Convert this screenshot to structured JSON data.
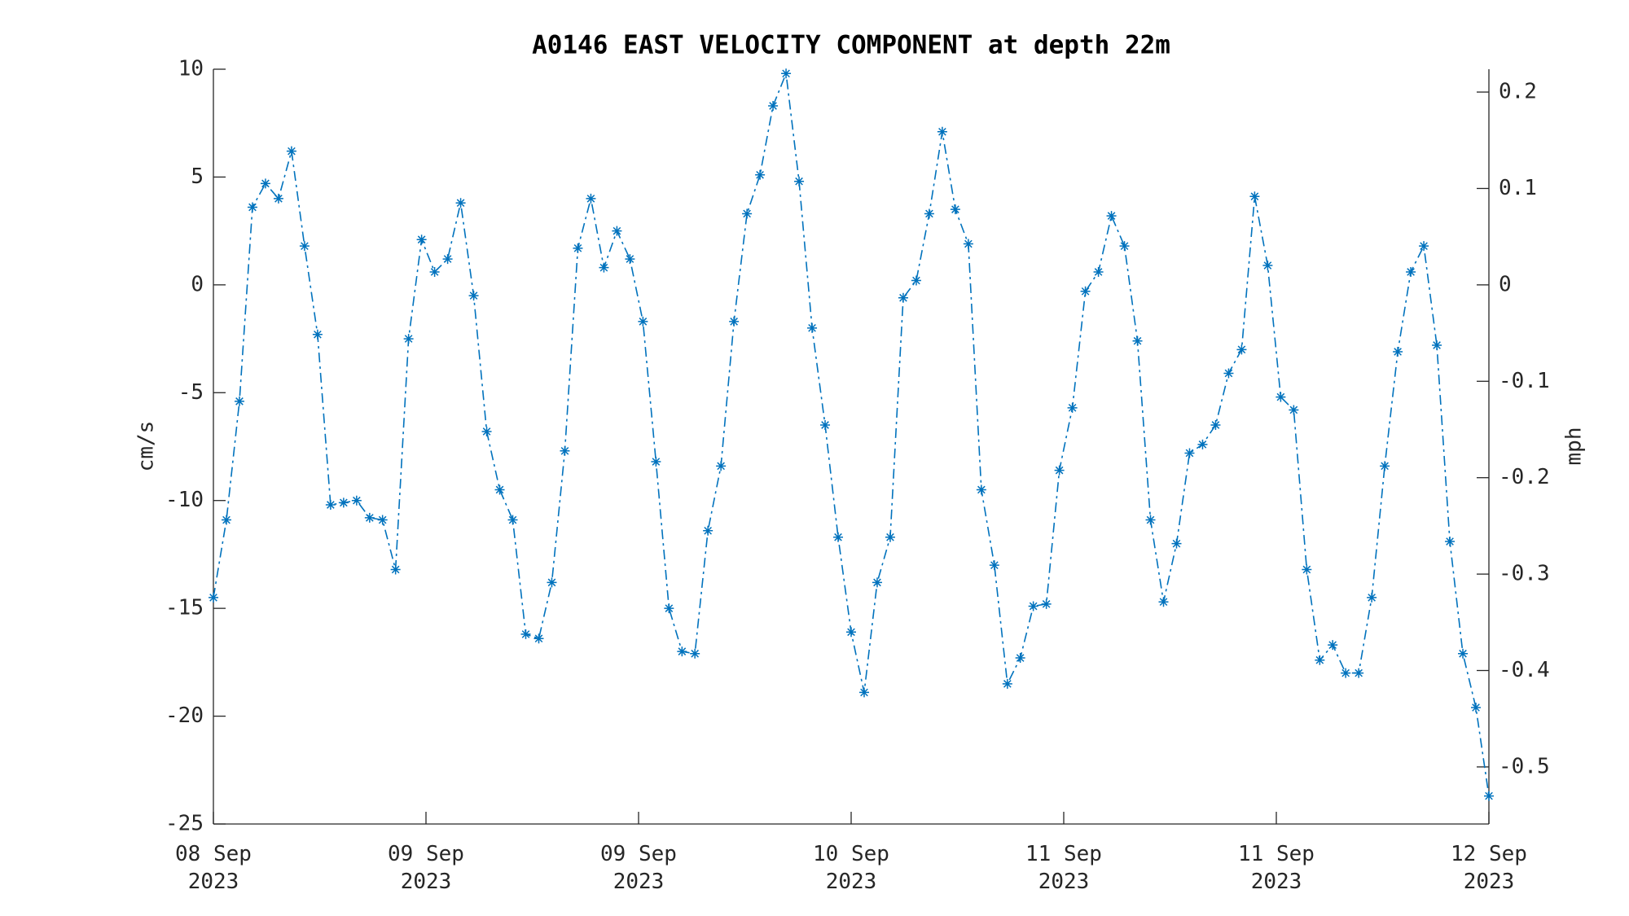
{
  "chart_data": {
    "type": "line",
    "title": "A0146 EAST VELOCITY COMPONENT at depth 22m",
    "ylabel": "cm/s",
    "y2label": "mph",
    "x": [
      0,
      0.98,
      1.96,
      2.94,
      3.92,
      4.9,
      5.88,
      6.86,
      7.84,
      8.82,
      9.8,
      10.78,
      11.76,
      12.73,
      13.71,
      14.69,
      15.67,
      16.65,
      17.63,
      18.61,
      19.59,
      20.57,
      21.55,
      22.53,
      23.51,
      24.49,
      25.47,
      26.45,
      27.43,
      28.41,
      29.39,
      30.37,
      31.35,
      32.33,
      33.31,
      34.29,
      35.27,
      36.24,
      37.22,
      38.2,
      39.18,
      40.16,
      41.14,
      42.12,
      43.1,
      44.08,
      45.06,
      46.04,
      47.02,
      48,
      48.98,
      49.96,
      50.94,
      51.92,
      52.9,
      53.88,
      54.86,
      55.84,
      56.82,
      57.8,
      58.78,
      59.76,
      60.73,
      61.71,
      62.69,
      63.67,
      64.65,
      65.63,
      66.61,
      67.59,
      68.57,
      69.55,
      70.53,
      71.51,
      72.49,
      73.47,
      74.45,
      75.43,
      76.41,
      77.39,
      78.37,
      79.35,
      80.33,
      81.31,
      82.29,
      83.27,
      84.24,
      85.22,
      86.2,
      87.18,
      88.16,
      89.14,
      90.12,
      91.1,
      92.08,
      93.06,
      94.04,
      95.02,
      96
    ],
    "series": [
      {
        "name": "East velocity",
        "color": "#0072bd",
        "values": [
          -14.5,
          -10.9,
          -5.4,
          3.6,
          4.7,
          4.0,
          6.2,
          1.8,
          -2.3,
          -10.2,
          -10.1,
          -10.0,
          -10.8,
          -10.9,
          -13.2,
          -2.5,
          2.1,
          0.6,
          1.2,
          3.8,
          -0.5,
          -6.8,
          -9.5,
          -10.9,
          -16.2,
          -16.4,
          -13.8,
          -7.7,
          1.7,
          4.0,
          0.8,
          2.5,
          1.2,
          -1.7,
          -8.2,
          -15.0,
          -17.0,
          -17.1,
          -11.4,
          -8.4,
          -1.7,
          3.3,
          5.1,
          8.3,
          9.8,
          4.8,
          -2.0,
          -6.5,
          -11.7,
          -16.1,
          -18.9,
          -13.8,
          -11.7,
          -0.6,
          0.2,
          3.3,
          7.1,
          3.5,
          1.9,
          -9.5,
          -13.0,
          -18.5,
          -17.3,
          -14.9,
          -14.8,
          -8.6,
          -5.7,
          -0.3,
          0.6,
          3.2,
          1.8,
          -2.6,
          -10.9,
          -14.7,
          -12.0,
          -7.8,
          -7.4,
          -6.5,
          -4.1,
          -3.0,
          4.1,
          0.9,
          -5.2,
          -5.8,
          -13.2,
          -17.4,
          -16.7,
          -18.0,
          -18.0,
          -14.5,
          -8.4,
          -3.1,
          0.6,
          1.8,
          -2.8,
          -11.9,
          -17.1,
          -19.6,
          -23.7
        ]
      }
    ],
    "xlim": [
      0,
      96
    ],
    "xticks": [
      {
        "value": 0,
        "label": "08 Sep 2023"
      },
      {
        "value": 16,
        "label": "09 Sep 2023"
      },
      {
        "value": 32,
        "label": "09 Sep 2023"
      },
      {
        "value": 48,
        "label": "10 Sep 2023"
      },
      {
        "value": 64,
        "label": "11 Sep 2023"
      },
      {
        "value": 80,
        "label": "11 Sep 2023"
      },
      {
        "value": 96,
        "label": "12 Sep 2023"
      }
    ],
    "ylim": [
      -25,
      10
    ],
    "yticks": [
      -25,
      -20,
      -15,
      -10,
      -5,
      0,
      5,
      10
    ],
    "y2lim": [
      -0.5592,
      0.2237
    ],
    "y2ticks": [
      -0.5,
      -0.4,
      -0.3,
      -0.2,
      -0.1,
      0,
      0.1,
      0.2
    ],
    "line_style": "dash-dot",
    "marker": "asterisk",
    "grid": false
  }
}
